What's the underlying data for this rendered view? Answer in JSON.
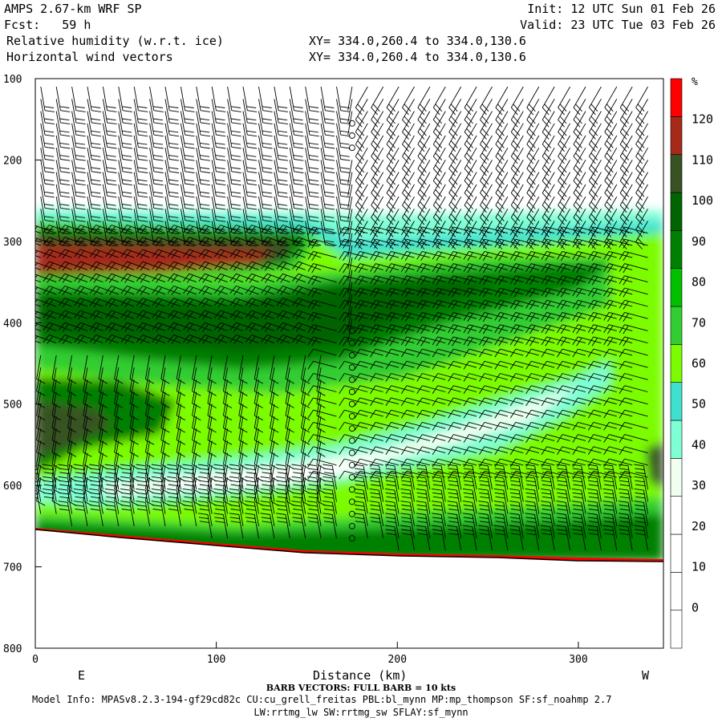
{
  "header": {
    "model": "AMPS 2.67-km WRF SP",
    "fcst": "Fcst:   59 h",
    "field1": "Relative humidity (w.r.t. ice)",
    "field2": "Horizontal wind vectors",
    "xy1": "XY= 334.0,260.4 to 334.0,130.6",
    "xy2": "XY= 334.0,260.4 to 334.0,130.6",
    "init": "Init: 12 UTC Sun 01 Feb 26",
    "valid": "Valid: 23 UTC Tue 03 Feb 26"
  },
  "footer": {
    "barb": "BARB VECTORS:  FULL BARB = 10 kts",
    "model_info": "Model Info: MPASv8.2.3-194-gf29cd82c CU:cu_grell_freitas PBL:bl_mynn MP:mp_thompson SF:sf_noahmp 2.7",
    "model_info2": "LW:rrtmg_lw SW:rrtmg_sw SFLAY:sf_mynn"
  },
  "chart_data": {
    "type": "heatmap",
    "title": "Relative humidity (w.r.t. ice)",
    "xlabel": "Distance (km)",
    "ylabel": "",
    "x_range": [
      0,
      347
    ],
    "y_range": [
      800,
      100
    ],
    "x_ticks": [
      0,
      100,
      200,
      300
    ],
    "y_ticks": [
      100,
      200,
      300,
      400,
      500,
      600,
      700,
      800
    ],
    "left_end_label": "E",
    "right_end_label": "W",
    "colorbar": {
      "unit": "%",
      "ticks": [
        0,
        10,
        20,
        30,
        40,
        50,
        60,
        70,
        80,
        90,
        100,
        110,
        120
      ],
      "levels": [
        -10,
        0,
        10,
        20,
        30,
        40,
        50,
        60,
        70,
        80,
        90,
        100,
        110,
        120,
        130
      ],
      "colors": [
        "#ffffff",
        "#ffffff",
        "#ffffff",
        "#ffffff",
        "#f0fff0",
        "#7fffd4",
        "#40e0d0",
        "#7cfc00",
        "#32cd32",
        "#00c000",
        "#008000",
        "#006400",
        "#385223",
        "#a52a1a",
        "#ff0000"
      ]
    },
    "terrain_pressure": [
      [
        0,
        655
      ],
      [
        50,
        665
      ],
      [
        100,
        675
      ],
      [
        150,
        683
      ],
      [
        175,
        686
      ],
      [
        200,
        688
      ],
      [
        250,
        691
      ],
      [
        300,
        695
      ],
      [
        347,
        697
      ]
    ],
    "rh_field_description": {
      "layers": [
        {
          "name": "upper-moist-layer",
          "x": [
            0,
            150
          ],
          "p": [
            270,
            345
          ],
          "rh_core": 115
        },
        {
          "name": "mid-moist-band",
          "x": [
            0,
            347
          ],
          "p": [
            350,
            470
          ],
          "rh_core": 95
        },
        {
          "name": "dry-tongue",
          "x": [
            100,
            300
          ],
          "p": [
            530,
            620
          ],
          "rh_core": 15
        },
        {
          "name": "surface-moist-layer",
          "x": [
            0,
            347
          ],
          "p": [
            620,
            690
          ],
          "rh_core": 110
        }
      ]
    }
  }
}
